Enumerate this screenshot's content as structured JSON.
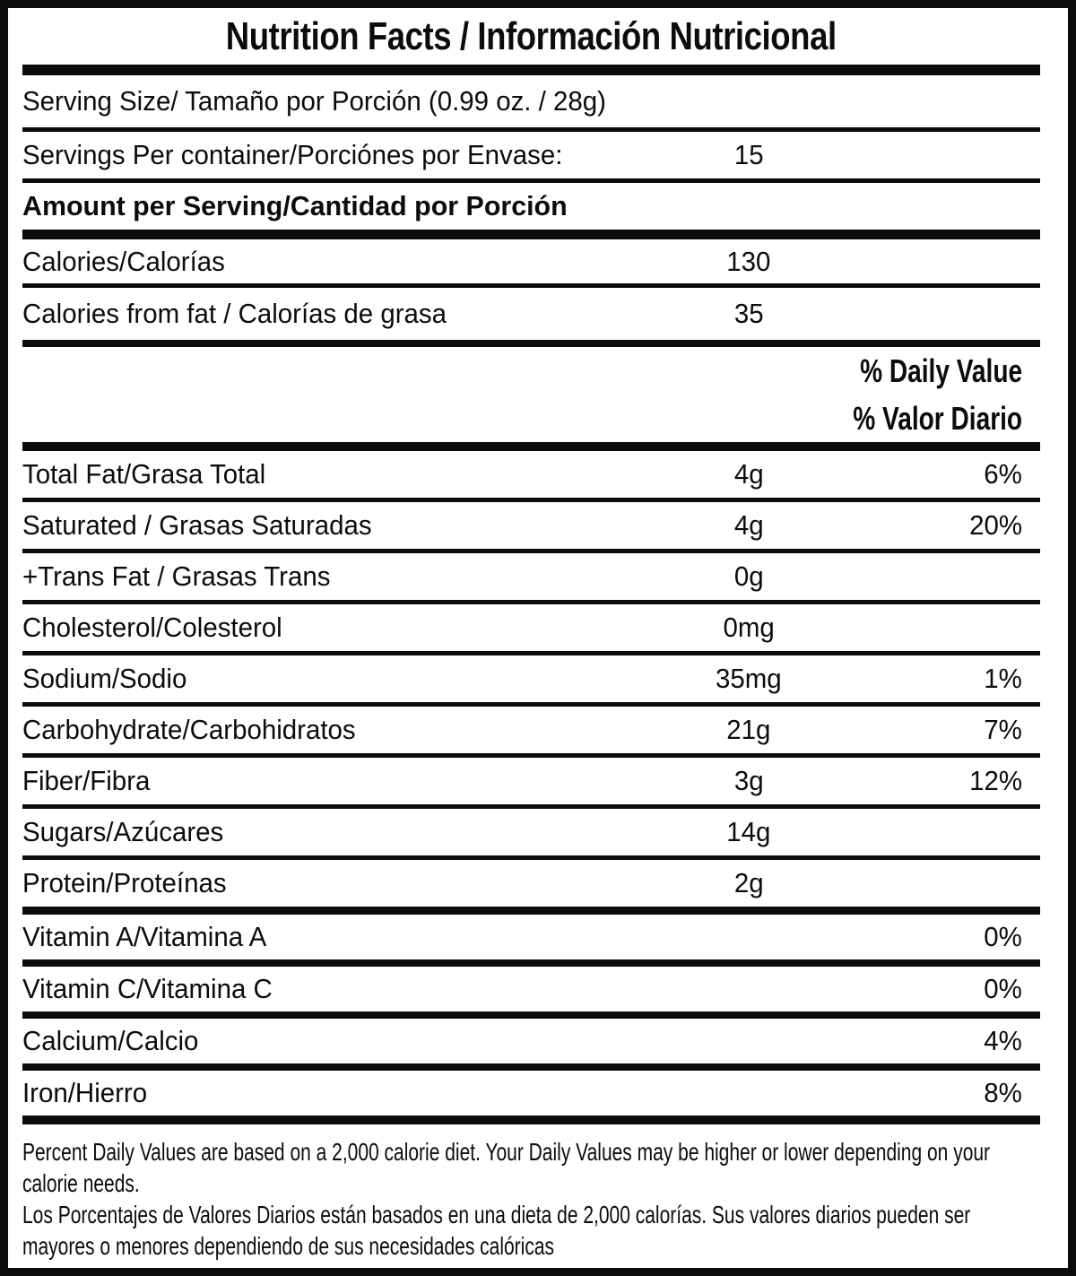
{
  "title": "Nutrition Facts / Información Nutricional",
  "colors": {
    "ink": "#0c0c0c",
    "background": "#ffffff"
  },
  "serving": {
    "serving_size_label": "Serving Size/ Tamaño por Porción  (0.99 oz. / 28g)",
    "servings_per_container_label": "Servings Per container/Porciónes por Envase:",
    "servings_per_container_value": "15",
    "amount_per_serving_label": "Amount per Serving/Cantidad por Porción"
  },
  "calories": {
    "calories_label": "Calories/Calorías",
    "calories_value": "130",
    "calories_from_fat_label": "Calories from fat / Calorías de grasa",
    "calories_from_fat_value": "35"
  },
  "daily_value_header": {
    "line1": "% Daily Value",
    "line2": "% Valor Diario"
  },
  "nutrients": [
    {
      "label": "Total Fat/Grasa Total",
      "value": "4g",
      "pct": "6%"
    },
    {
      "label": "Saturated / Grasas Saturadas",
      "value": "4g",
      "pct": "20%"
    },
    {
      "label": "+Trans Fat / Grasas Trans",
      "value": "0g",
      "pct": ""
    },
    {
      "label": "Cholesterol/Colesterol",
      "value": "0mg",
      "pct": ""
    },
    {
      "label": "Sodium/Sodio",
      "value": "35mg",
      "pct": "1%"
    },
    {
      "label": "Carbohydrate/Carbohidratos",
      "value": "21g",
      "pct": "7%"
    },
    {
      "label": "Fiber/Fibra",
      "value": "3g",
      "pct": "12%"
    },
    {
      "label": "Sugars/Azúcares",
      "value": "14g",
      "pct": ""
    },
    {
      "label": "Protein/Proteínas",
      "value": "2g",
      "pct": ""
    }
  ],
  "vitamins": [
    {
      "label": "Vitamin A/Vitamina A",
      "pct": "0%"
    },
    {
      "label": "Vitamin C/Vitamina C",
      "pct": "0%"
    },
    {
      "label": "Calcium/Calcio",
      "pct": "4%"
    },
    {
      "label": "Iron/Hierro",
      "pct": "8%"
    }
  ],
  "footnote": {
    "lines": [
      "Percent Daily Values are based on a 2,000 calorie diet. Your Daily Values may be higher or lower depending on your",
      "calorie needs.",
      "Los Porcentajes de Valores Diarios están basados en una dieta de 2,000 calorías. Sus valores diarios pueden ser",
      "mayores o menores dependiendo de sus necesidades calóricas"
    ]
  }
}
